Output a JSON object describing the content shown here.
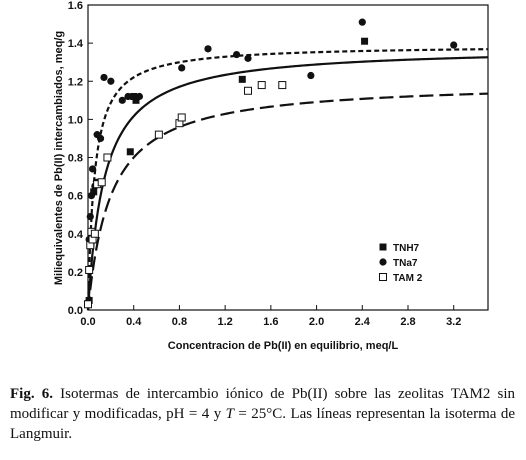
{
  "chart_data": {
    "type": "scatter",
    "xlabel": "Concentracion de Pb(II) en equilibrio, meq/L",
    "ylabel": "Miliequivalentes de Pb(II) intercambiados, meq/g",
    "xlim": [
      0,
      3.5
    ],
    "ylim": [
      0,
      1.6
    ],
    "xticks": [
      "0.0",
      "0.4",
      "0.8",
      "1.2",
      "1.6",
      "2.0",
      "2.4",
      "2.8",
      "3.2"
    ],
    "xtick_values": [
      0,
      0.4,
      0.8,
      1.2,
      1.6,
      2.0,
      2.4,
      2.8,
      3.2
    ],
    "yticks": [
      "0.0",
      "0.2",
      "0.4",
      "0.6",
      "0.8",
      "1.0",
      "1.2",
      "1.4",
      "1.6"
    ],
    "ytick_values": [
      0,
      0.2,
      0.4,
      0.6,
      0.8,
      1.0,
      1.2,
      1.4,
      1.6
    ],
    "grid": false,
    "legend_position": "lower-right",
    "series": [
      {
        "name": "TNH7",
        "marker": "filled-square",
        "color": "#111111",
        "points": [
          [
            0.01,
            0.05
          ],
          [
            0.03,
            0.37
          ],
          [
            0.05,
            0.62
          ],
          [
            0.08,
            0.67
          ],
          [
            0.4,
            1.12
          ],
          [
            0.37,
            0.83
          ],
          [
            0.42,
            1.1
          ],
          [
            1.35,
            1.21
          ],
          [
            2.42,
            1.41
          ]
        ]
      },
      {
        "name": "TNa7",
        "marker": "filled-circle",
        "color": "#111111",
        "points": [
          [
            0.0,
            0.04
          ],
          [
            0.01,
            0.37
          ],
          [
            0.02,
            0.49
          ],
          [
            0.03,
            0.6
          ],
          [
            0.04,
            0.74
          ],
          [
            0.06,
            0.65
          ],
          [
            0.08,
            0.92
          ],
          [
            0.11,
            0.9
          ],
          [
            0.14,
            1.22
          ],
          [
            0.2,
            1.2
          ],
          [
            0.3,
            1.1
          ],
          [
            0.35,
            1.12
          ],
          [
            0.45,
            1.12
          ],
          [
            0.82,
            1.27
          ],
          [
            1.05,
            1.37
          ],
          [
            1.3,
            1.34
          ],
          [
            1.4,
            1.32
          ],
          [
            1.95,
            1.23
          ],
          [
            2.4,
            1.51
          ],
          [
            3.2,
            1.39
          ]
        ]
      },
      {
        "name": "TAM 2",
        "marker": "open-square",
        "color": "#111111",
        "points": [
          [
            0.0,
            0.03
          ],
          [
            0.01,
            0.21
          ],
          [
            0.02,
            0.34
          ],
          [
            0.03,
            0.41
          ],
          [
            0.04,
            0.37
          ],
          [
            0.06,
            0.4
          ],
          [
            0.08,
            0.66
          ],
          [
            0.12,
            0.67
          ],
          [
            0.17,
            0.8
          ],
          [
            0.62,
            0.92
          ],
          [
            0.8,
            0.98
          ],
          [
            0.82,
            1.01
          ],
          [
            1.4,
            1.15
          ],
          [
            1.52,
            1.18
          ],
          [
            1.7,
            1.18
          ]
        ]
      }
    ],
    "fit_curves": [
      {
        "style": "dashed-short",
        "qmax": 1.39,
        "K": 18
      },
      {
        "style": "solid",
        "qmax": 1.38,
        "K": 7
      },
      {
        "style": "dashed-long",
        "qmax": 1.2,
        "K": 5
      }
    ]
  },
  "caption": {
    "fig_label": "Fig. 6.",
    "text_1": " Isotermas de intercambio iónico de Pb(II) sobre las zeolitas TAM2 sin modificar y modificadas, pH = 4 y ",
    "t_symbol": "T",
    "text_2": " = 25°C. Las líneas representan la isoterma de Langmuir."
  }
}
